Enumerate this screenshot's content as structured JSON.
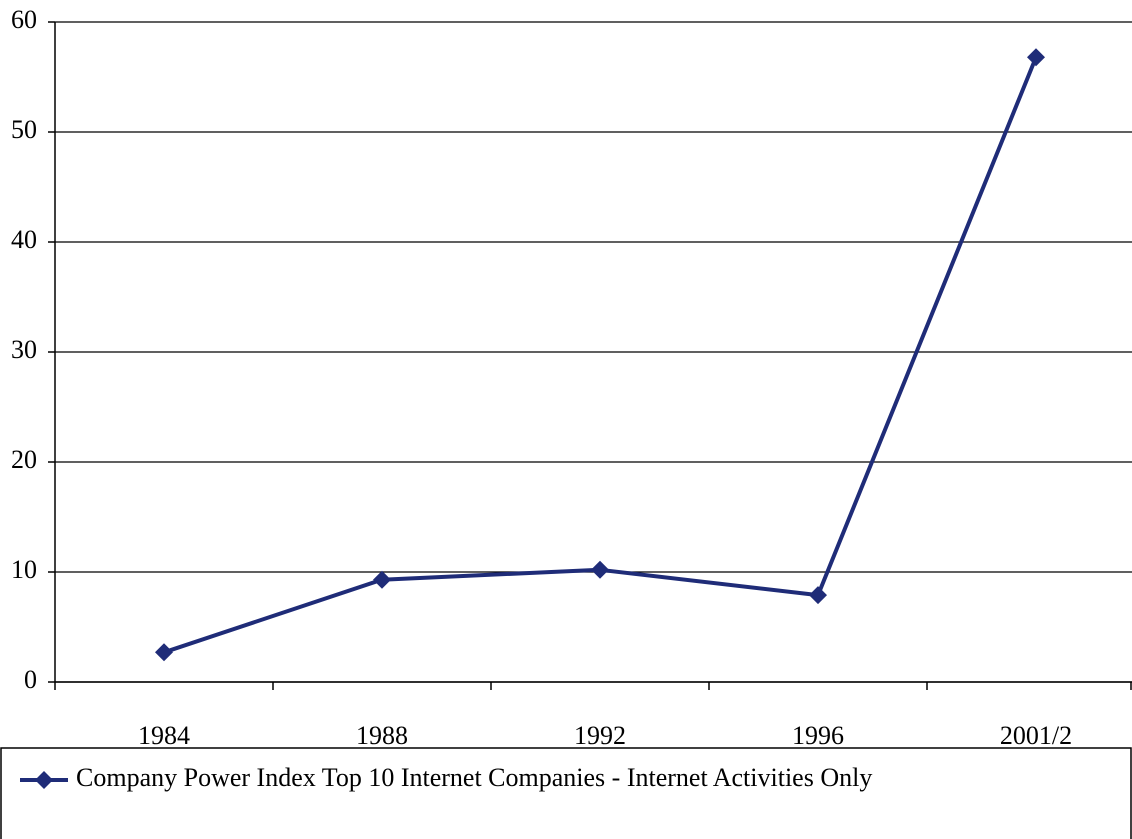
{
  "chart_data": {
    "type": "line",
    "categories": [
      "1984",
      "1988",
      "1992",
      "1996",
      "2001/2"
    ],
    "series": [
      {
        "name": "Company Power Index Top 10 Internet Companies - Internet Activities Only",
        "color": "#1f2c78",
        "values": [
          2.7,
          9.3,
          10.2,
          7.9,
          56.8
        ]
      }
    ],
    "ylim": [
      0,
      60
    ],
    "yticks": [
      0,
      10,
      20,
      30,
      40,
      50,
      60
    ],
    "grid": true,
    "legend": "bottom"
  }
}
